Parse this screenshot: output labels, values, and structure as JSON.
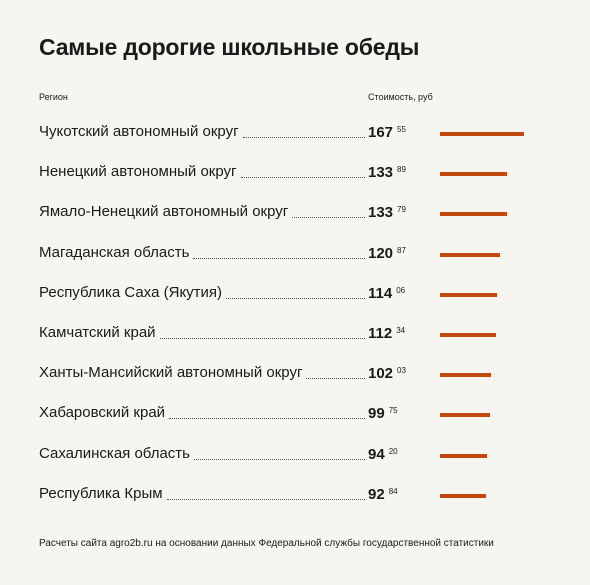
{
  "title": "Самые дорогие школьные обеды",
  "headers": {
    "region": "Регион",
    "cost": "Стоимость, руб"
  },
  "source": "Расчеты сайта agro2b.ru на основании данных Федеральной службы государственной статистики",
  "colors": {
    "bar": "#c4490e",
    "background": "#f7f5f0"
  },
  "chart_data": {
    "type": "bar",
    "title": "Самые дорогие школьные обеды",
    "xlabel": "Регион",
    "ylabel": "Стоимость, руб",
    "categories": [
      "Чукотский автономный округ",
      "Ненецкий автономный округ",
      "Ямало-Ненецкий автономный округ",
      "Магаданская область",
      "Республика Саха (Якутия)",
      "Камчатский край",
      "Ханты-Мансийский автономный округ",
      "Хабаровский край",
      "Сахалинская область",
      "Республика Крым"
    ],
    "values": [
      167.55,
      133.89,
      133.79,
      120.87,
      114.06,
      112.34,
      102.03,
      99.75,
      94.2,
      92.84
    ],
    "labels_rub": [
      "167",
      "133",
      "133",
      "120",
      "114",
      "112",
      "102",
      "99",
      "94",
      "92"
    ],
    "labels_kop": [
      "55",
      "89",
      "79",
      "87",
      "06",
      "34",
      "03",
      "75",
      "20",
      "84"
    ],
    "orientation": "horizontal",
    "grid": false,
    "legend": "none"
  }
}
